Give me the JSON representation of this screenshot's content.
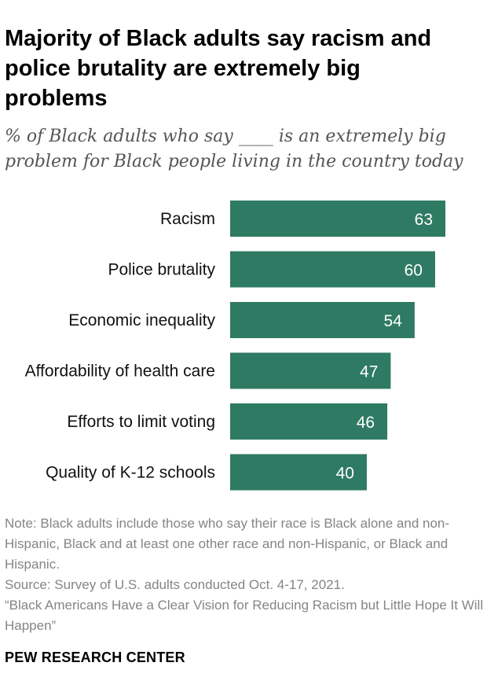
{
  "title": "Majority of Black adults say racism and police brutality are extremely big problems",
  "subtitle": "% of Black adults who say ____ is an extremely big problem for Black people living in the country today",
  "chart_data": {
    "type": "bar",
    "orientation": "horizontal",
    "categories": [
      "Racism",
      "Police brutality",
      "Economic inequality",
      "Affordability of health care",
      "Efforts to limit voting",
      "Quality of K-12 schools"
    ],
    "values": [
      63,
      60,
      54,
      47,
      46,
      40
    ],
    "value_labels": [
      "63",
      "60",
      "54",
      "47",
      "46",
      "40"
    ],
    "title": "Majority of Black adults say racism and police brutality are extremely big problems",
    "xlabel": "",
    "ylabel": "",
    "xlim": [
      0,
      63
    ],
    "bar_color": "#2f7a63",
    "value_label_color": "#ffffff",
    "grid": false
  },
  "notes": {
    "note": "Note: Black adults include those who say their race is Black alone and non-Hispanic, Black and at least one other race and non-Hispanic, or Black and Hispanic.",
    "source": "Source: Survey of U.S. adults conducted Oct. 4-17, 2021.",
    "report": "“Black Americans Have a Clear Vision for Reducing Racism but Little Hope It Will Happen”"
  },
  "brand": "PEW RESEARCH CENTER"
}
